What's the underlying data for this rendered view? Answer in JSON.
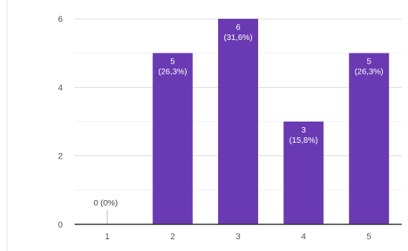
{
  "chart_data": {
    "type": "bar",
    "categories": [
      "1",
      "2",
      "3",
      "4",
      "5"
    ],
    "values": [
      0,
      5,
      6,
      3,
      5
    ],
    "data_labels": [
      [
        "0 (0%)"
      ],
      [
        "5",
        "(26,3%)"
      ],
      [
        "6",
        "(31,6%)"
      ],
      [
        "3",
        "(15,8%)"
      ],
      [
        "5",
        "(26,3%)"
      ]
    ],
    "y_ticks": [
      0,
      2,
      4,
      6
    ],
    "ylim": [
      0,
      6
    ],
    "grid": true,
    "bar_color": "#6a3ab2",
    "title": "",
    "xlabel": "",
    "ylabel": ""
  }
}
